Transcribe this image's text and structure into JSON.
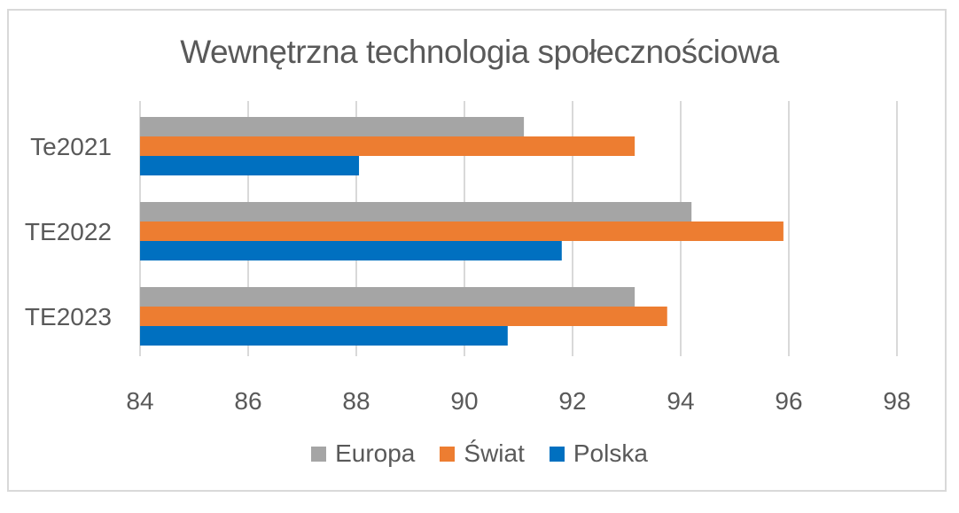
{
  "chart_data": {
    "type": "bar",
    "orientation": "horizontal",
    "title": "Wewnętrzna technologia społecznościowa",
    "categories": [
      "Te2021",
      "TE2022",
      "TE2023"
    ],
    "series": [
      {
        "name": "Europa",
        "color": "#a5a5a5",
        "values": [
          91.1,
          94.2,
          93.15
        ]
      },
      {
        "name": "Świat",
        "color": "#ed7d31",
        "values": [
          93.15,
          95.9,
          93.75
        ]
      },
      {
        "name": "Polska",
        "color": "#0070c0",
        "values": [
          88.05,
          91.8,
          90.8
        ]
      }
    ],
    "xlim": [
      84,
      98
    ],
    "xticks": [
      "84",
      "86",
      "88",
      "90",
      "92",
      "94",
      "96",
      "98"
    ],
    "grid": true,
    "legend_position": "bottom"
  }
}
